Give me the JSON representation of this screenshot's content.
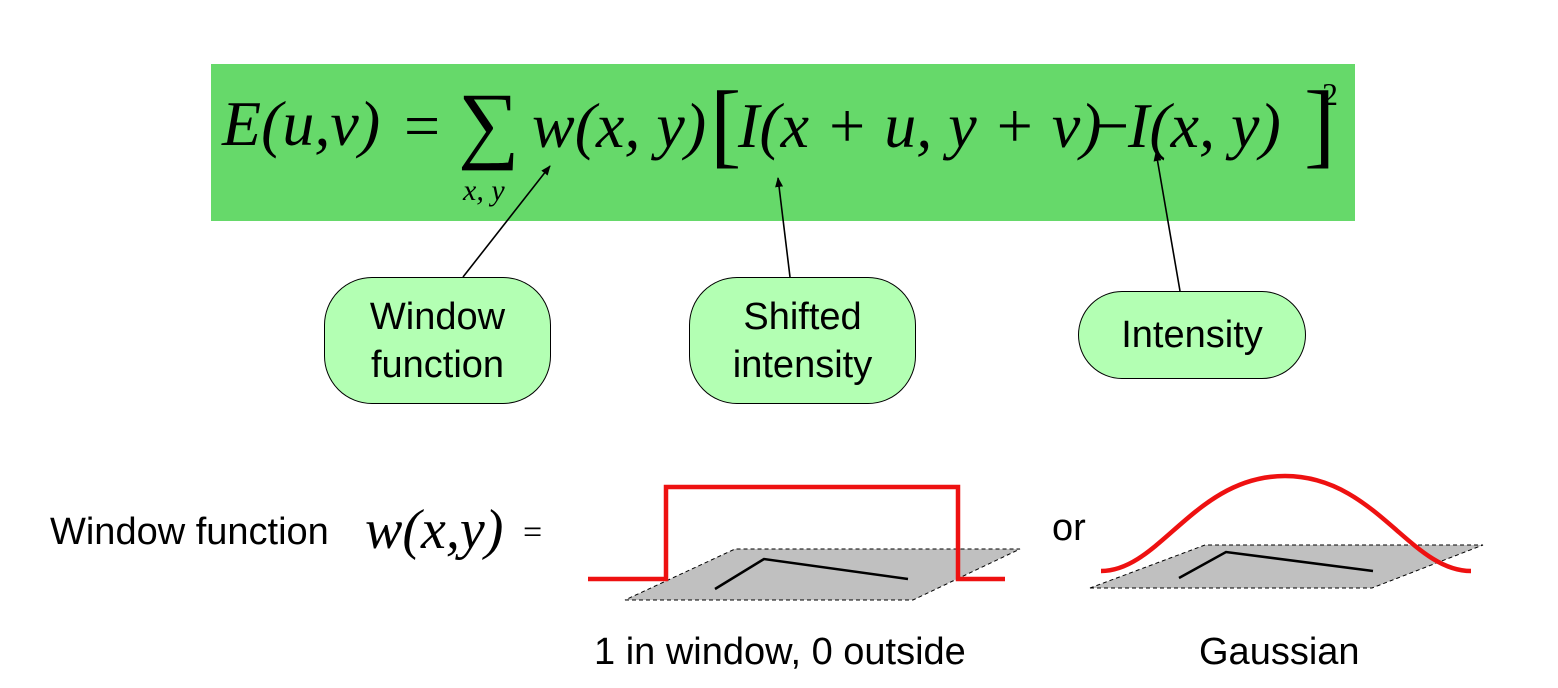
{
  "formula": {
    "lhs": "E(u,v)",
    "equals": "=",
    "sum_symbol": "∑",
    "sum_subscript": "x, y",
    "window_term": "w(x, y)",
    "open_bracket": "[",
    "shifted_term": "I(x + u, y + v)",
    "minus": "−",
    "intensity_term": "I(x, y)",
    "close_bracket": "]",
    "exponent": "2",
    "highlight_color": "#66d96a"
  },
  "callouts": {
    "window_function": {
      "line1": "Window",
      "line2": "function"
    },
    "shifted_intensity": {
      "line1": "Shifted",
      "line2": "intensity"
    },
    "intensity": {
      "line1": "Intensity"
    },
    "fill_color": "#b3ffb3"
  },
  "window_row": {
    "label": "Window function",
    "math_label": "w(x,y)",
    "equals": "=",
    "connector": "or",
    "box_caption": "1 in window, 0 outside",
    "gaussian_caption": "Gaussian",
    "curve_color": "#ee1111",
    "plane_color": "#c0c0c0"
  }
}
